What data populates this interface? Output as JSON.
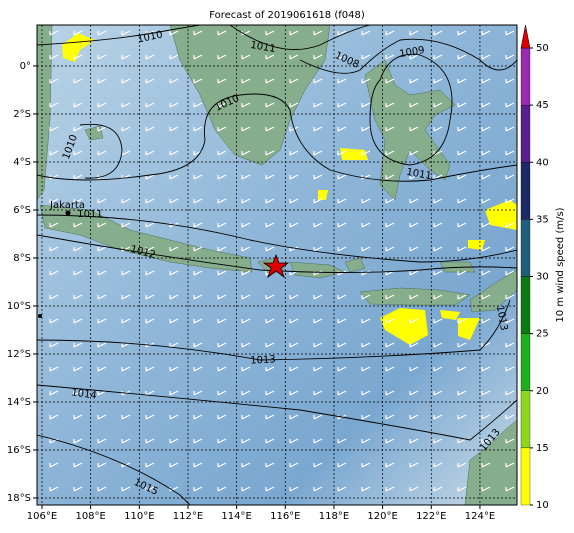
{
  "title": "Forecast of 2019061618 (f048)",
  "lon_ticks": [
    {
      "value": 106,
      "label": "106°E"
    },
    {
      "value": 108,
      "label": "108°E"
    },
    {
      "value": 110,
      "label": "110°E"
    },
    {
      "value": 112,
      "label": "112°E"
    },
    {
      "value": 114,
      "label": "114°E"
    },
    {
      "value": 116,
      "label": "116°E"
    },
    {
      "value": 118,
      "label": "118°E"
    },
    {
      "value": 120,
      "label": "120°E"
    },
    {
      "value": 122,
      "label": "122°E"
    },
    {
      "value": 124,
      "label": "124°E"
    }
  ],
  "lat_ticks": [
    {
      "value": 0,
      "label": "0°"
    },
    {
      "value": -2,
      "label": "2°S"
    },
    {
      "value": -4,
      "label": "4°S"
    },
    {
      "value": -6,
      "label": "6°S"
    },
    {
      "value": -8,
      "label": "8°S"
    },
    {
      "value": -10,
      "label": "10°S"
    },
    {
      "value": -12,
      "label": "12°S"
    },
    {
      "value": -14,
      "label": "14°S"
    },
    {
      "value": -16,
      "label": "16°S"
    },
    {
      "value": -18,
      "label": "18°S"
    }
  ],
  "colorbar": {
    "label": "10 m wind speed (m/s)",
    "ticks": [
      10,
      15,
      20,
      25,
      30,
      35,
      40,
      45,
      50
    ],
    "lim": [
      10,
      50
    ],
    "colors": [
      "#ffff00",
      "#8fd61f",
      "#1fae1f",
      "#0a7a12",
      "#1f5f7a",
      "#1c2a66",
      "#5a1f8f",
      "#9a2ab0"
    ],
    "extend_color": "#e00000"
  },
  "city": "Jakarta",
  "contour_labels": [
    "1010",
    "1011",
    "1008",
    "1009",
    "1010",
    "1010",
    "1011",
    "1011",
    "1012",
    "1013",
    "1014",
    "1015",
    "1013",
    "1013"
  ]
}
